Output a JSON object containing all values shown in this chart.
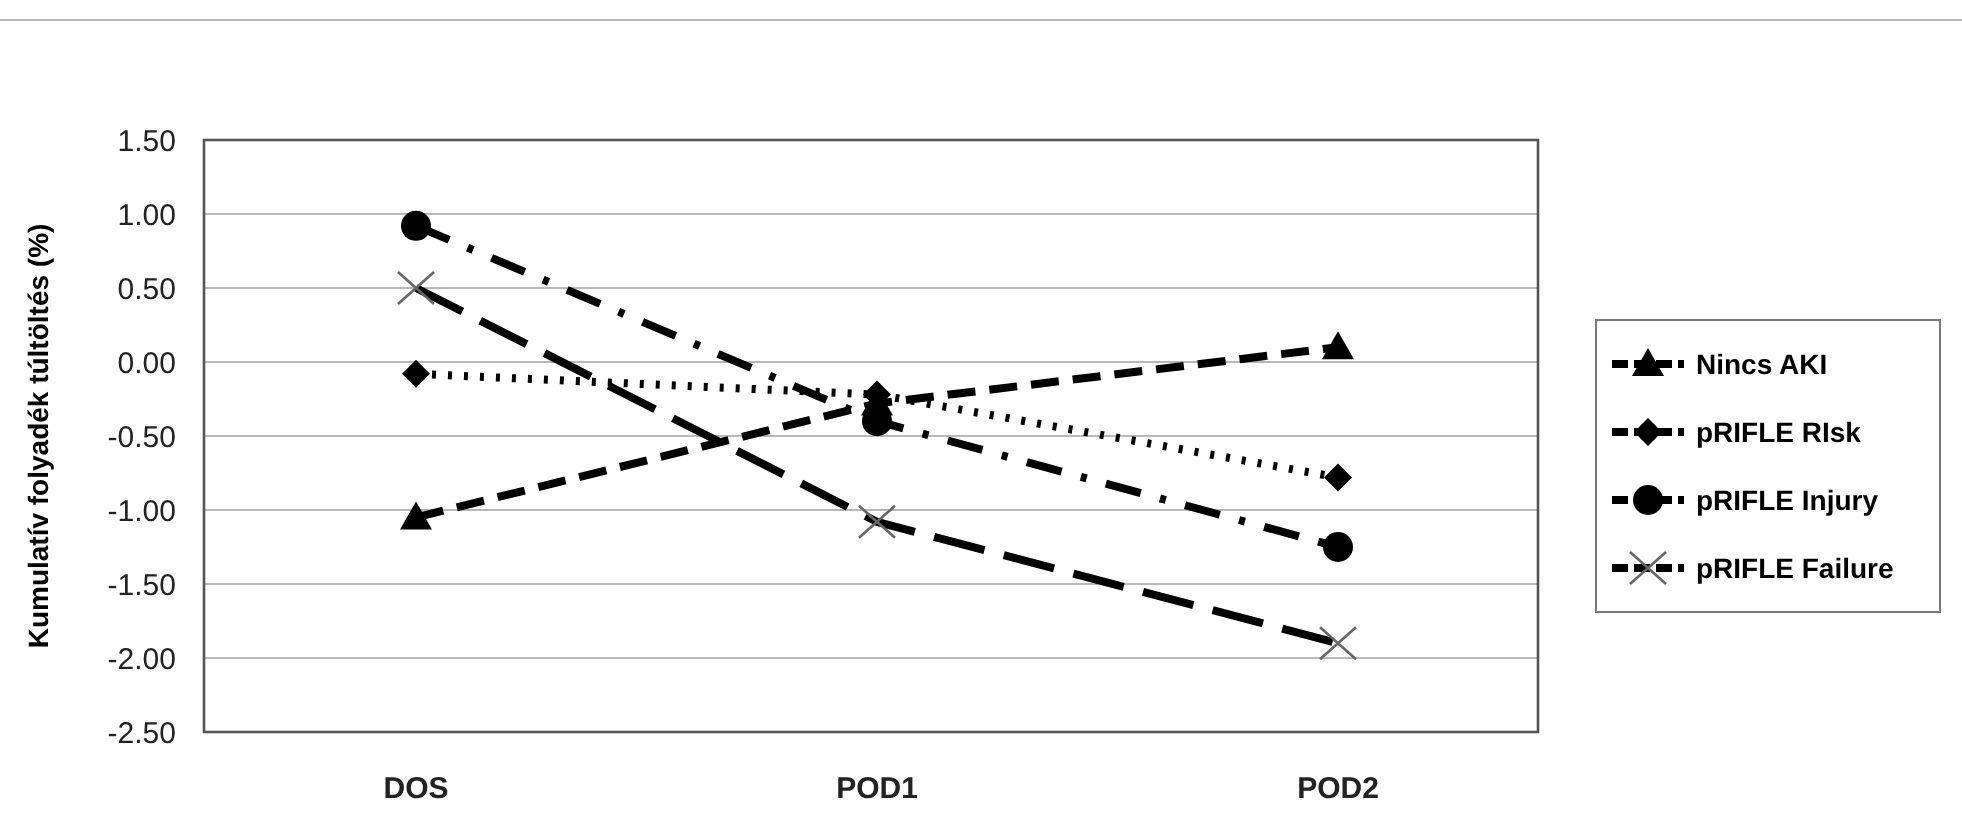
{
  "chart_data": {
    "type": "line",
    "ylabel": "Kumulatív folyadék túltöltés (%)",
    "categories": [
      "DOS",
      "POD1",
      "POD2"
    ],
    "series": [
      {
        "name": "Nincs AKI",
        "color": "#000000",
        "values": [
          -1.05,
          -0.28,
          0.1
        ],
        "marker": "triangle",
        "line_style": "dashed"
      },
      {
        "name": "pRIFLE RIsk",
        "color": "#000000",
        "values": [
          -0.08,
          -0.22,
          -0.78
        ],
        "marker": "diamond",
        "line_style": "dotted"
      },
      {
        "name": "pRIFLE Injury",
        "color": "#000000",
        "values": [
          0.92,
          -0.4,
          -1.25
        ],
        "marker": "circle",
        "line_style": "dashdot"
      },
      {
        "name": "pRIFLE Failure",
        "color": "#000000",
        "values": [
          0.5,
          -1.08,
          -1.9
        ],
        "marker": "cross",
        "line_style": "longdash"
      }
    ],
    "ylim": [
      -2.5,
      1.5
    ],
    "yticks": [
      {
        "value": 1.5,
        "label": "1.50"
      },
      {
        "value": 1,
        "label": "1.00"
      },
      {
        "value": 0.5,
        "label": "0.50"
      },
      {
        "value": 0,
        "label": "0.00"
      },
      {
        "value": -0.5,
        "label": "-0.50"
      },
      {
        "value": -1,
        "label": "-1.00"
      },
      {
        "value": -1.5,
        "label": "-1.50"
      },
      {
        "value": -2,
        "label": "-2.00"
      },
      {
        "value": -2.5,
        "label": "-2.50"
      }
    ],
    "grid": "y",
    "legend": "right"
  }
}
